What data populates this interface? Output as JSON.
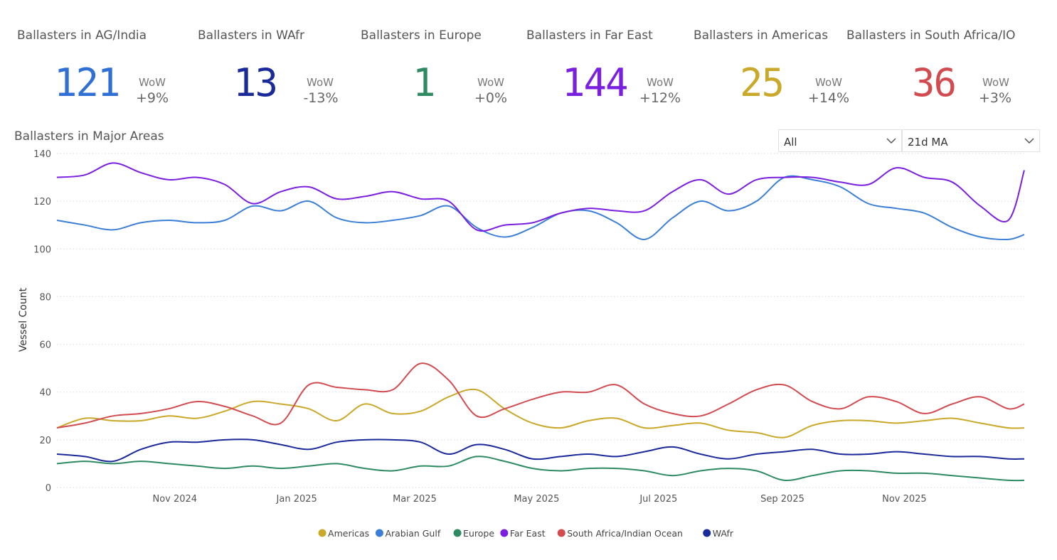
{
  "kpis": [
    {
      "title": "Ballasters in AG/India",
      "value": "121",
      "wow_label": "WoW",
      "change": "+9%",
      "color": "#2f6fd6"
    },
    {
      "title": "Ballasters in WAfr",
      "value": "13",
      "wow_label": "WoW",
      "change": "-13%",
      "color": "#1b2a9a"
    },
    {
      "title": "Ballasters in Europe",
      "value": "1",
      "wow_label": "WoW",
      "change": "+0%",
      "color": "#2e8a63"
    },
    {
      "title": "Ballasters in Far East",
      "value": "144",
      "wow_label": "WoW",
      "change": "+12%",
      "color": "#7a1fe0"
    },
    {
      "title": "Ballasters in Americas",
      "value": "25",
      "wow_label": "WoW",
      "change": "+14%",
      "color": "#c9a82a"
    },
    {
      "title": "Ballasters in South Africa/IO",
      "value": "36",
      "wow_label": "WoW",
      "change": "+3%",
      "color": "#d14b50"
    }
  ],
  "chart_title": "Ballasters in Major Areas",
  "filters": {
    "region": "All",
    "smoothing": "21d MA"
  },
  "chart_data": {
    "type": "line",
    "title": "Ballasters in Major Areas",
    "xlabel": "",
    "ylabel": "Vessel Count",
    "ylim": [
      0,
      140
    ],
    "yticks": [
      0,
      20,
      40,
      60,
      80,
      100,
      120,
      140
    ],
    "xlim": [
      "2024-09-03",
      "2025-12-31"
    ],
    "xticks": [
      {
        "label": "Nov 2024",
        "date": "2024-11-01"
      },
      {
        "label": "Jan 2025",
        "date": "2025-01-01"
      },
      {
        "label": "Mar 2025",
        "date": "2025-03-01"
      },
      {
        "label": "May 2025",
        "date": "2025-05-01"
      },
      {
        "label": "Jul 2025",
        "date": "2025-07-01"
      },
      {
        "label": "Sep 2025",
        "date": "2025-09-01"
      },
      {
        "label": "Nov 2025",
        "date": "2025-11-01"
      }
    ],
    "grid": "horizontal dotted",
    "legend_position": "bottom-center",
    "x": [
      "2024-09-03",
      "2024-09-17",
      "2024-10-01",
      "2024-10-15",
      "2024-10-29",
      "2024-11-12",
      "2024-11-26",
      "2024-12-10",
      "2024-12-24",
      "2025-01-07",
      "2025-01-21",
      "2025-02-04",
      "2025-02-18",
      "2025-03-04",
      "2025-03-18",
      "2025-04-01",
      "2025-04-15",
      "2025-04-29",
      "2025-05-13",
      "2025-05-27",
      "2025-06-10",
      "2025-06-24",
      "2025-07-08",
      "2025-07-22",
      "2025-08-05",
      "2025-08-19",
      "2025-09-02",
      "2025-09-16",
      "2025-09-30",
      "2025-10-14",
      "2025-10-28",
      "2025-11-11",
      "2025-11-25",
      "2025-12-09",
      "2025-12-23",
      "2025-12-31"
    ],
    "series": [
      {
        "name": "Americas",
        "color": "#c9a82a",
        "values": [
          25,
          29,
          28,
          28,
          30,
          29,
          32,
          36,
          35,
          33,
          28,
          35,
          31,
          32,
          38,
          41,
          33,
          27,
          25,
          28,
          29,
          25,
          26,
          27,
          24,
          23,
          21,
          26,
          28,
          28,
          27,
          28,
          29,
          27,
          25,
          25
        ]
      },
      {
        "name": "Arabian Gulf",
        "color": "#3b7fd6",
        "values": [
          112,
          110,
          108,
          111,
          112,
          111,
          112,
          118,
          116,
          120,
          113,
          111,
          112,
          114,
          118,
          109,
          105,
          109,
          115,
          116,
          111,
          104,
          113,
          120,
          116,
          120,
          130,
          129,
          126,
          119,
          117,
          115,
          109,
          105,
          104,
          106
        ]
      },
      {
        "name": "Europe",
        "color": "#2e8a63",
        "values": [
          10,
          11,
          10,
          11,
          10,
          9,
          8,
          9,
          8,
          9,
          10,
          8,
          7,
          9,
          9,
          13,
          11,
          8,
          7,
          8,
          8,
          7,
          5,
          7,
          8,
          7,
          3,
          5,
          7,
          7,
          6,
          6,
          5,
          4,
          3,
          3
        ]
      },
      {
        "name": "Far East",
        "color": "#7a1fe0",
        "values": [
          130,
          131,
          136,
          132,
          129,
          130,
          127,
          119,
          124,
          126,
          121,
          122,
          124,
          121,
          120,
          108,
          110,
          111,
          115,
          117,
          116,
          116,
          124,
          129,
          123,
          129,
          130,
          130,
          128,
          127,
          134,
          130,
          128,
          118,
          112,
          133
        ]
      },
      {
        "name": "South Africa/Indian Ocean",
        "color": "#d14b50",
        "values": [
          25,
          27,
          30,
          31,
          33,
          36,
          34,
          30,
          27,
          43,
          42,
          41,
          41,
          52,
          45,
          30,
          33,
          37,
          40,
          40,
          43,
          35,
          31,
          30,
          35,
          41,
          43,
          36,
          33,
          38,
          36,
          31,
          35,
          38,
          33,
          35
        ]
      },
      {
        "name": "WAfr",
        "color": "#1b2a9a",
        "values": [
          14,
          13,
          11,
          16,
          19,
          19,
          20,
          20,
          18,
          16,
          19,
          20,
          20,
          19,
          14,
          18,
          16,
          12,
          13,
          14,
          13,
          15,
          17,
          14,
          12,
          14,
          15,
          16,
          14,
          14,
          15,
          14,
          13,
          13,
          12,
          12
        ]
      }
    ]
  }
}
